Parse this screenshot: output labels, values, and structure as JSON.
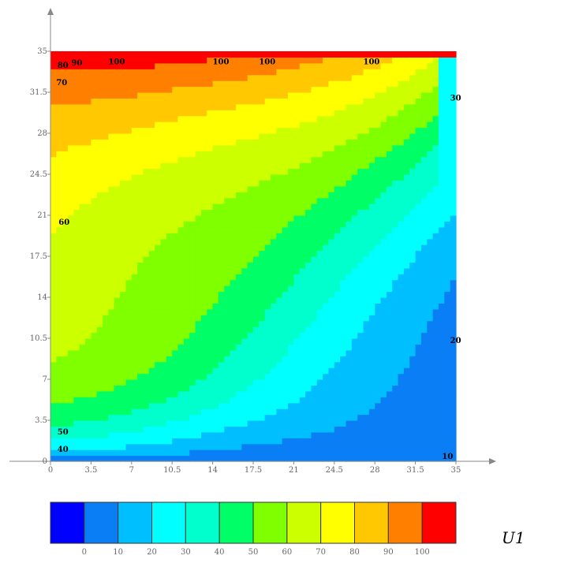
{
  "chart_data": {
    "type": "heatmap",
    "subtype": "filled-contour",
    "x_ticks": [
      "0",
      "3.5",
      "7",
      "10.5",
      "14",
      "17.5",
      "21",
      "24.5",
      "28",
      "31.5",
      "35"
    ],
    "y_ticks": [
      "0",
      "3.5",
      "7",
      "10.5",
      "14",
      "17.5",
      "21",
      "24.5",
      "28",
      "31.5",
      "35"
    ],
    "xlim": [
      0,
      35
    ],
    "ylim": [
      0,
      35
    ],
    "contour_levels": [
      0,
      10,
      20,
      30,
      40,
      50,
      60,
      70,
      80,
      90,
      100
    ],
    "band_colors": [
      "#0000ff",
      "#0a7ff5",
      "#00bfff",
      "#00ffff",
      "#00ffcc",
      "#00ff66",
      "#7fff00",
      "#ccff00",
      "#ffff00",
      "#ffc800",
      "#ff8000",
      "#ff0000"
    ],
    "contour_labels": [
      {
        "text": "100",
        "x": 5,
        "y": 34.1
      },
      {
        "text": "100",
        "x": 14,
        "y": 34.1
      },
      {
        "text": "100",
        "x": 18,
        "y": 34.1
      },
      {
        "text": "100",
        "x": 27,
        "y": 34.1
      },
      {
        "text": "90",
        "x": 1.8,
        "y": 34.0
      },
      {
        "text": "80",
        "x": 0.6,
        "y": 33.8
      },
      {
        "text": "70",
        "x": 0.5,
        "y": 32.3
      },
      {
        "text": "60",
        "x": 0.7,
        "y": 20.4
      },
      {
        "text": "50",
        "x": 0.6,
        "y": 2.5
      },
      {
        "text": "40",
        "x": 0.6,
        "y": 1.0
      },
      {
        "text": "30",
        "x": 34.5,
        "y": 31.0
      },
      {
        "text": "20",
        "x": 34.5,
        "y": 10.3
      },
      {
        "text": "10",
        "x": 33.8,
        "y": 0.4
      }
    ],
    "colorbar": {
      "tick_labels": [
        "0",
        "10",
        "20",
        "30",
        "40",
        "50",
        "60",
        "70",
        "80",
        "90",
        "100"
      ],
      "title": "U1"
    }
  }
}
